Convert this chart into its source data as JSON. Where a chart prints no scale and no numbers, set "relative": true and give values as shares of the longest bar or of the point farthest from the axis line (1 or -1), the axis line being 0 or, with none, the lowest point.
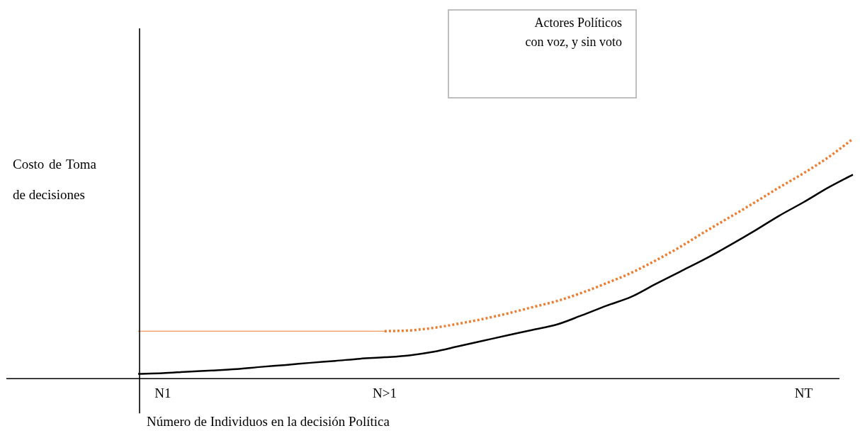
{
  "chart_data": {
    "type": "line",
    "relative": true,
    "xlabel": "Número de Individuos en la decisión Política",
    "ylabel": "Costo de Toma de decisiones",
    "annotations": [
      "Actores Políticos con voz, y sin voto"
    ],
    "categories": [
      null,
      "N1",
      null,
      null,
      null,
      null,
      null,
      null,
      null,
      null,
      "N>1",
      null,
      null,
      null,
      null,
      null,
      null,
      null,
      null,
      null,
      null,
      null,
      null,
      null,
      null,
      null,
      null,
      "NT",
      null,
      null
    ],
    "legend": false,
    "grid": false,
    "marker": "none",
    "series": [
      {
        "color": "#000000",
        "line_style": "solid",
        "values": [
          0.02,
          0.023,
          0.029,
          0.034,
          0.04,
          0.049,
          0.057,
          0.066,
          0.074,
          0.083,
          0.089,
          0.097,
          0.112,
          0.135,
          0.158,
          0.181,
          0.203,
          0.226,
          0.264,
          0.304,
          0.341,
          0.395,
          0.447,
          0.499,
          0.556,
          0.616,
          0.679,
          0.736,
          0.797,
          0.851
        ]
      },
      {
        "color": "#ed7d31",
        "line_style": "solid",
        "values": [
          0.198,
          0.198,
          0.198,
          0.198,
          0.198,
          0.198,
          0.198,
          0.198,
          0.198,
          0.198,
          0.198,
          null,
          null,
          null,
          null,
          null,
          null,
          null,
          null,
          null,
          null,
          null,
          null,
          null,
          null,
          null,
          null,
          null,
          null,
          null
        ]
      },
      {
        "color": "#ed7d31",
        "line_style": "dotted",
        "values": [
          null,
          null,
          null,
          null,
          null,
          null,
          null,
          null,
          null,
          null,
          0.198,
          0.201,
          0.212,
          0.229,
          0.249,
          0.272,
          0.298,
          0.324,
          0.358,
          0.398,
          0.441,
          0.493,
          0.55,
          0.613,
          0.673,
          0.734,
          0.797,
          0.857,
          0.923,
          1.0
        ]
      }
    ]
  }
}
